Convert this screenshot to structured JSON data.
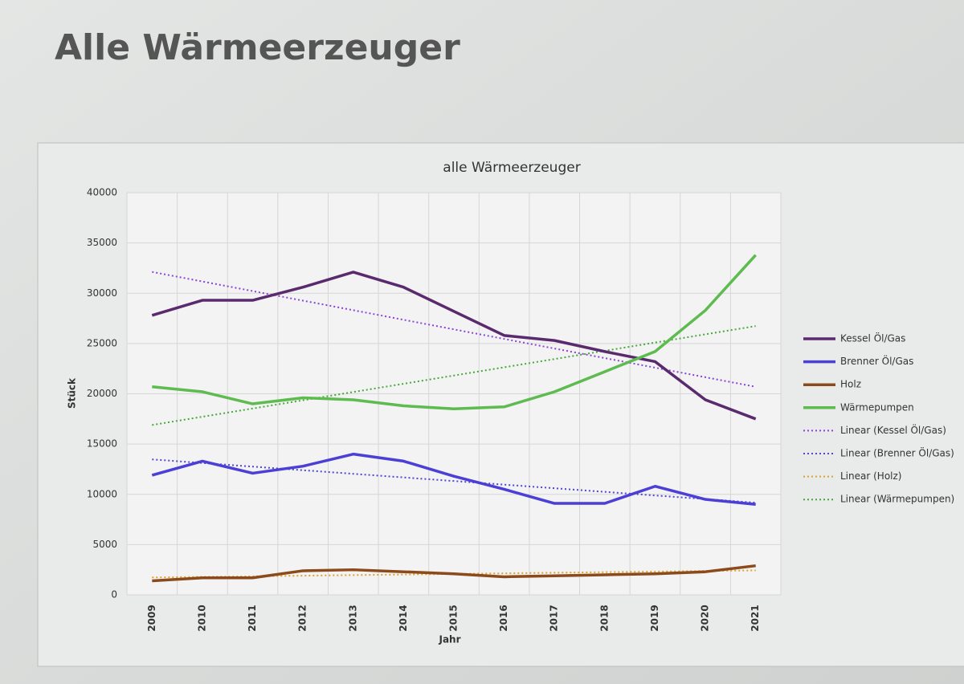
{
  "heading": "Alle Wärmeerzeuger",
  "chart_data": {
    "type": "line",
    "title": "alle Wärmeerzeuger",
    "x_label": "Jahr",
    "y_label": "Stück",
    "categories": [
      "2009",
      "2010",
      "2011",
      "2012",
      "2013",
      "2014",
      "2015",
      "2016",
      "2017",
      "2018",
      "2019",
      "2020",
      "2021"
    ],
    "ylim": [
      0,
      40000
    ],
    "yticks": [
      0,
      5000,
      10000,
      15000,
      20000,
      25000,
      30000,
      35000,
      40000
    ],
    "grid": true,
    "legend": "right",
    "series": [
      {
        "name": "Kessel Öl/Gas",
        "color": "#5a2a6e",
        "values": [
          27800,
          29300,
          29300,
          30600,
          32100,
          30600,
          28200,
          25800,
          25300,
          24200,
          23200,
          19400,
          17500
        ],
        "trendline": {
          "name": "Linear (Kessel Öl/Gas)",
          "color": "#8a44d8"
        }
      },
      {
        "name": "Brenner Öl/Gas",
        "color": "#4b3fd6",
        "values": [
          11900,
          13300,
          12100,
          12800,
          14000,
          13300,
          11800,
          10500,
          9100,
          9100,
          10800,
          9500,
          9000
        ],
        "trendline": {
          "name": "Linear (Brenner Öl/Gas)",
          "color": "#5046d8"
        }
      },
      {
        "name": "Holz",
        "color": "#8b4a1c",
        "values": [
          1400,
          1700,
          1700,
          2400,
          2500,
          2300,
          2100,
          1800,
          1900,
          2000,
          2100,
          2300,
          2900
        ],
        "trendline": {
          "name": "Linear (Holz)",
          "color": "#e0a030"
        }
      },
      {
        "name": "Wärmepumpen",
        "color": "#5dbb4f",
        "values": [
          20700,
          20200,
          19000,
          19600,
          19400,
          18800,
          18500,
          18700,
          20200,
          22200,
          24200,
          28300,
          33800
        ],
        "trendline": {
          "name": "Linear (Wärmepumpen)",
          "color": "#46a83a"
        }
      }
    ]
  }
}
